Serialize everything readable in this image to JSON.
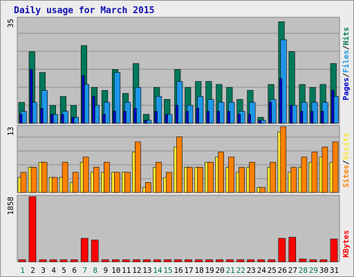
{
  "title": "Daily usage for March 2015",
  "colors": {
    "pages": "#0000c8",
    "files": "#1e96e6",
    "hits": "#00785a",
    "sites": "#ff8000",
    "visits": "#ffe632",
    "kbytes": "#ff0000",
    "weekday_label": "#000000",
    "weekend_label": "#00785a"
  },
  "chart_data": [
    {
      "type": "bar",
      "title": "",
      "ylabel_max": "35",
      "ylim": [
        0,
        35
      ],
      "legend": [
        "Pages",
        "Files",
        "Hits"
      ],
      "legend_placement": "right-vertical",
      "categories": [
        "1",
        "2",
        "3",
        "4",
        "5",
        "6",
        "7",
        "8",
        "9",
        "10",
        "11",
        "12",
        "13",
        "14",
        "15",
        "16",
        "17",
        "18",
        "19",
        "20",
        "21",
        "22",
        "23",
        "24",
        "25",
        "26",
        "27",
        "28",
        "29",
        "30",
        "31"
      ],
      "series": [
        {
          "name": "Hits",
          "values": [
            7,
            24,
            17,
            6,
            9,
            6,
            26,
            12,
            11,
            18,
            10,
            20,
            3,
            12,
            8,
            18,
            12,
            14,
            14,
            13,
            12,
            8,
            11,
            2,
            13,
            34,
            24,
            13,
            12,
            13,
            20
          ]
        },
        {
          "name": "Files",
          "values": [
            4,
            7,
            11,
            3,
            4,
            2,
            13,
            6,
            7,
            17,
            7,
            12,
            1,
            9,
            3,
            14,
            6,
            9,
            8,
            7,
            7,
            4,
            7,
            1,
            8,
            28,
            6,
            7,
            7,
            7,
            9
          ]
        },
        {
          "name": "Pages",
          "values": [
            3,
            18,
            5,
            3,
            3,
            2,
            16,
            9,
            3,
            4,
            4,
            5,
            1,
            4,
            3,
            6,
            4,
            5,
            4,
            4,
            4,
            3,
            3,
            1,
            7,
            15,
            6,
            4,
            4,
            4,
            11
          ]
        }
      ]
    },
    {
      "type": "bar",
      "title": "",
      "ylabel_max": "13",
      "ylim": [
        0,
        13
      ],
      "legend": [
        "Sites",
        "Visits"
      ],
      "legend_placement": "right-vertical",
      "categories": [
        "1",
        "2",
        "3",
        "4",
        "5",
        "6",
        "7",
        "8",
        "9",
        "10",
        "11",
        "12",
        "13",
        "14",
        "15",
        "16",
        "17",
        "18",
        "19",
        "20",
        "21",
        "22",
        "23",
        "24",
        "25",
        "26",
        "27",
        "28",
        "29",
        "30",
        "31"
      ],
      "series": [
        {
          "name": "Visits",
          "values": [
            3,
            5,
            6,
            3,
            3,
            2,
            6,
            4,
            4,
            4,
            4,
            8,
            1,
            5,
            3,
            9,
            5,
            5,
            6,
            7,
            5,
            4,
            5,
            1,
            5,
            12,
            4,
            5,
            6,
            7,
            6
          ]
        },
        {
          "name": "Sites",
          "values": [
            4,
            5,
            6,
            3,
            6,
            4,
            7,
            5,
            6,
            4,
            4,
            10,
            2,
            6,
            4,
            11,
            5,
            5,
            6,
            8,
            7,
            5,
            6,
            1,
            6,
            13,
            5,
            7,
            8,
            9,
            10
          ]
        }
      ]
    },
    {
      "type": "bar",
      "title": "",
      "ylabel_max": "1858",
      "ylim": [
        0,
        1858
      ],
      "legend": [
        "KBytes"
      ],
      "legend_placement": "right-vertical",
      "categories": [
        "1",
        "2",
        "3",
        "4",
        "5",
        "6",
        "7",
        "8",
        "9",
        "10",
        "11",
        "12",
        "13",
        "14",
        "15",
        "16",
        "17",
        "18",
        "19",
        "20",
        "21",
        "22",
        "23",
        "24",
        "25",
        "26",
        "27",
        "28",
        "29",
        "30",
        "31"
      ],
      "series": [
        {
          "name": "KBytes",
          "values": [
            30,
            1858,
            45,
            30,
            30,
            40,
            670,
            620,
            60,
            35,
            30,
            40,
            30,
            40,
            30,
            60,
            45,
            50,
            45,
            45,
            50,
            35,
            40,
            25,
            35,
            670,
            700,
            80,
            40,
            40,
            650
          ]
        }
      ]
    }
  ],
  "weekend_days": [
    "1",
    "7",
    "8",
    "14",
    "15",
    "21",
    "22",
    "28",
    "29"
  ]
}
